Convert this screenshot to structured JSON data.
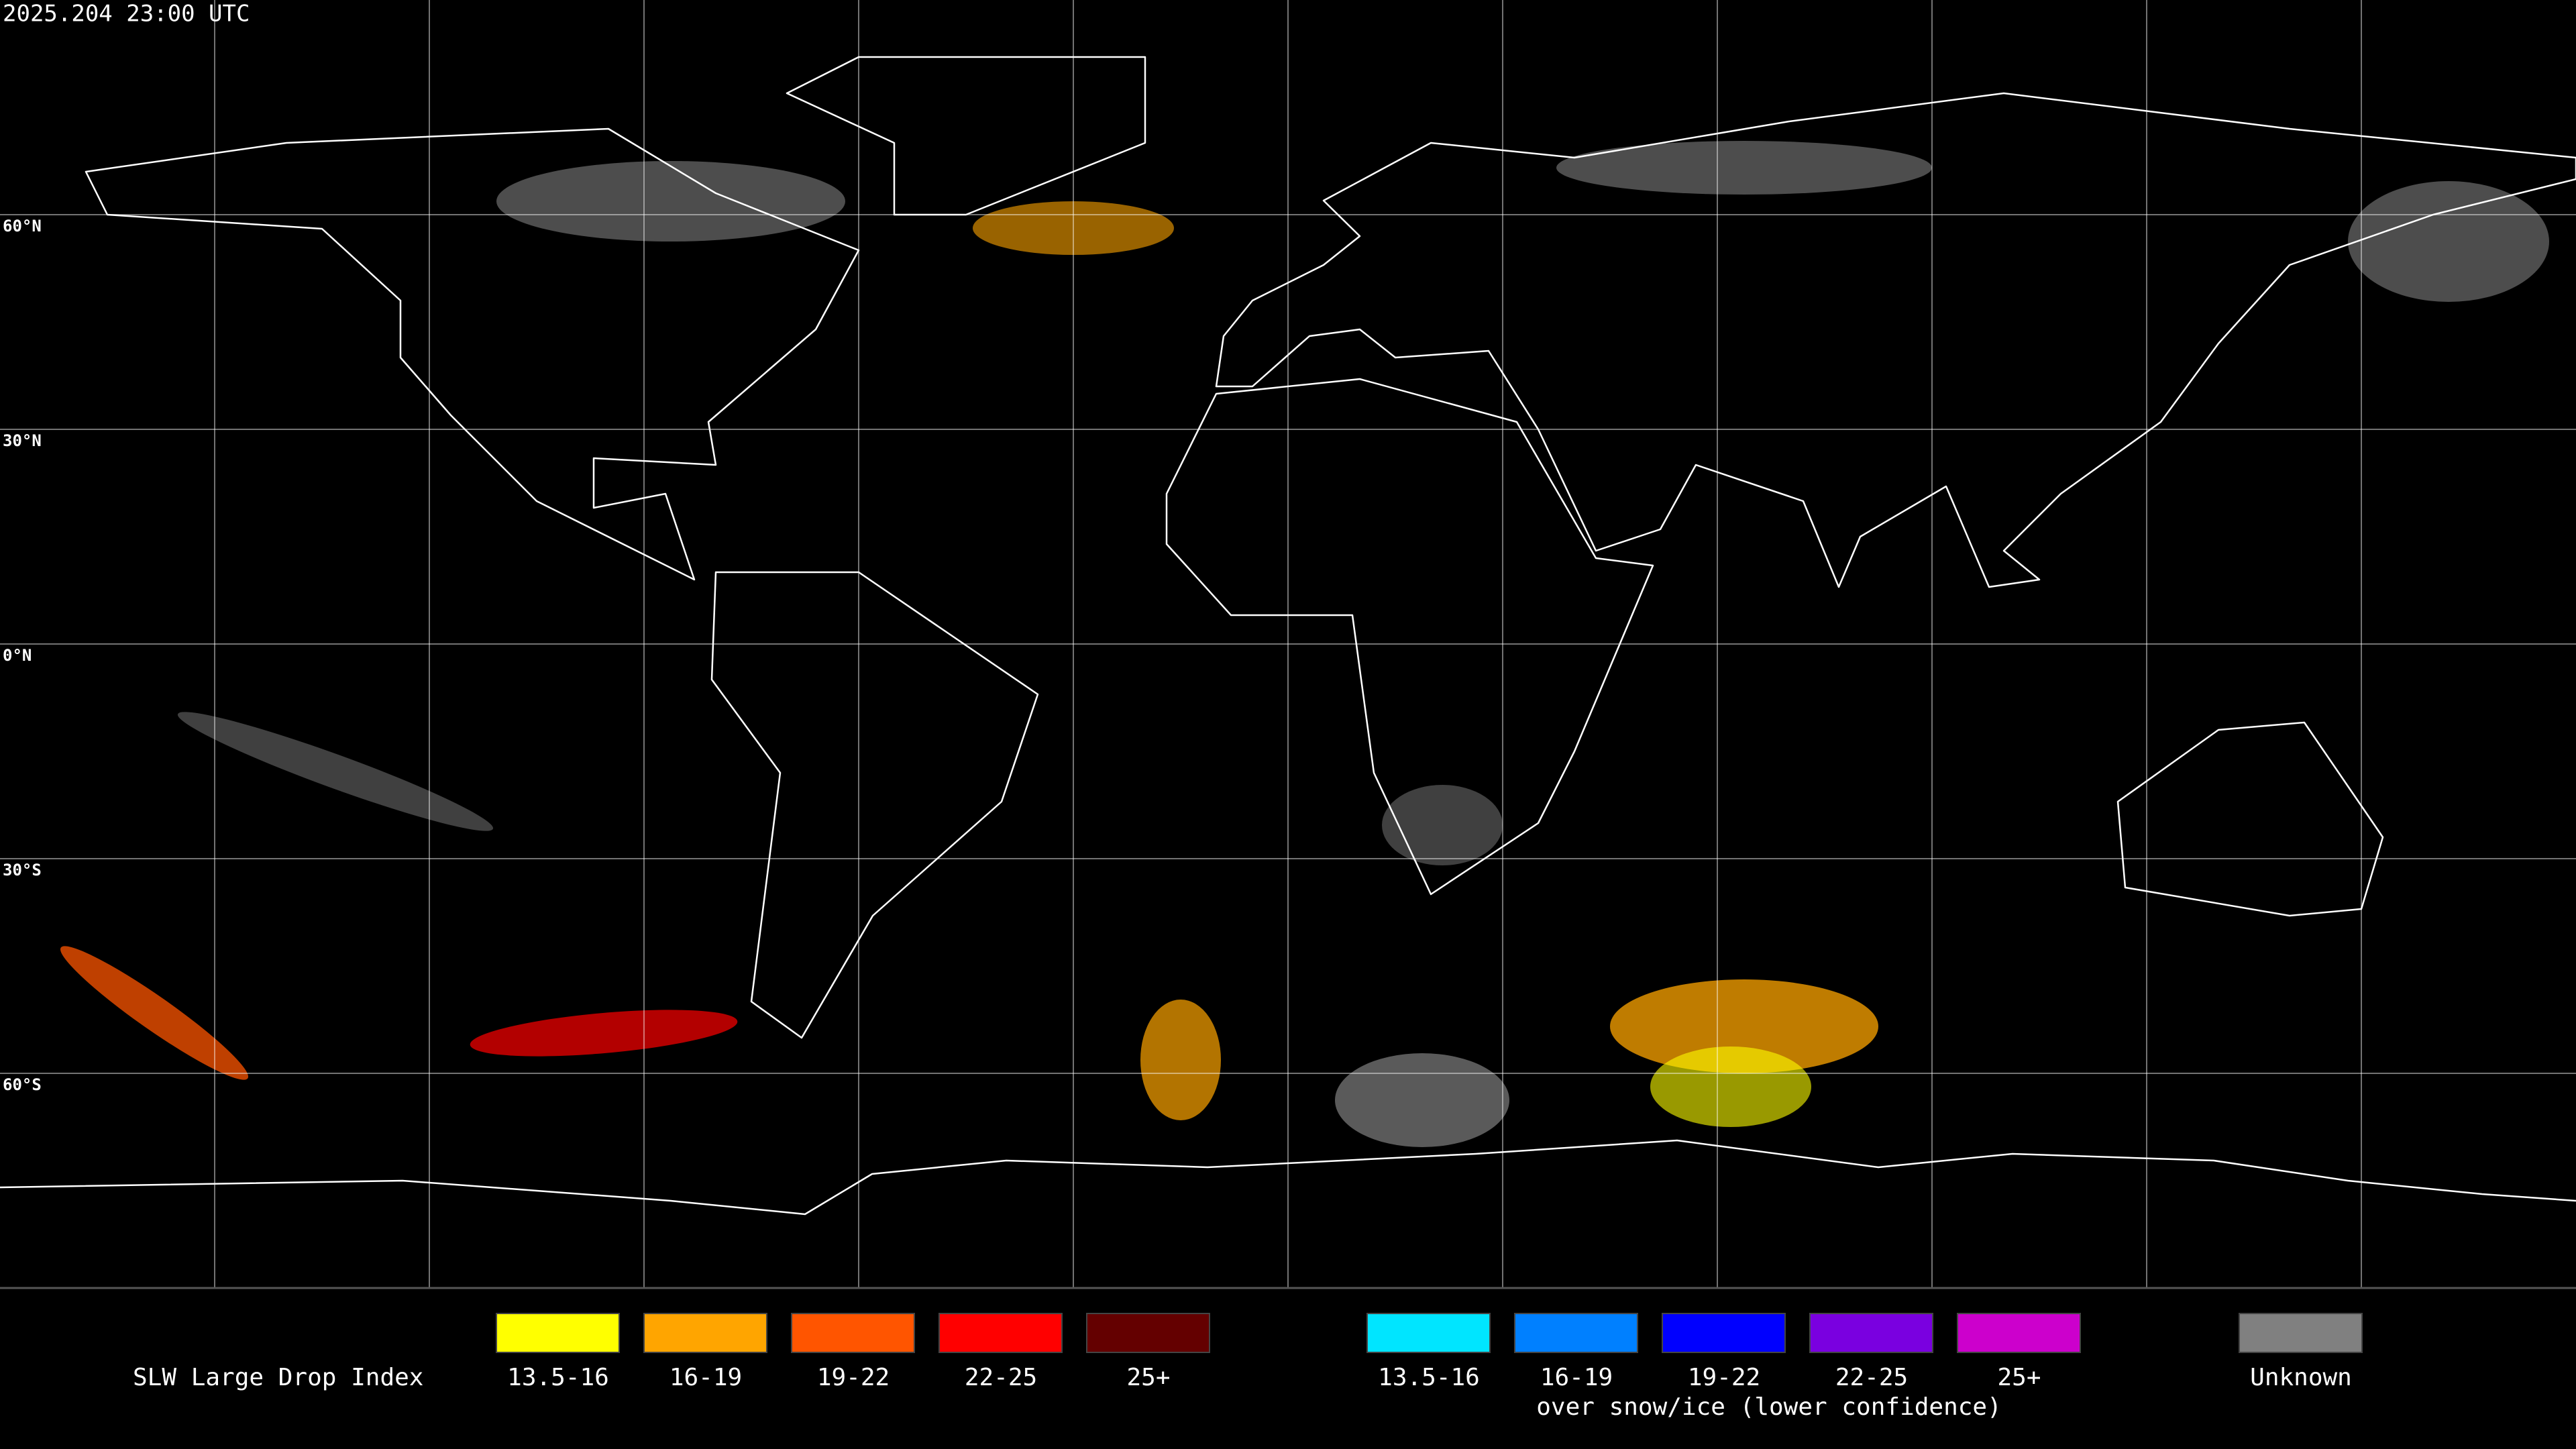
{
  "header": {
    "timestamp": "2025.204 23:00 UTC"
  },
  "map": {
    "latitude_labels": [
      "60°N",
      "30°N",
      "0°N",
      "30°S",
      "60°S"
    ]
  },
  "legend": {
    "title": "SLW Large Drop Index",
    "items": [
      {
        "label": "13.5-16",
        "color": "#ffff00"
      },
      {
        "label": "16-19",
        "color": "#ffa500"
      },
      {
        "label": "19-22",
        "color": "#ff5500"
      },
      {
        "label": "22-25",
        "color": "#ff0000"
      },
      {
        "label": "25+",
        "color": "#640000"
      }
    ],
    "snow_items": [
      {
        "label": "13.5-16",
        "color": "#00e5ff"
      },
      {
        "label": "16-19",
        "color": "#0080ff"
      },
      {
        "label": "19-22",
        "color": "#0000ff"
      },
      {
        "label": "22-25",
        "color": "#7a00e0"
      },
      {
        "label": "25+",
        "color": "#cc00cc"
      }
    ],
    "snow_note": "over snow/ice (lower confidence)",
    "unknown": {
      "label": "Unknown",
      "color": "#808080"
    }
  }
}
